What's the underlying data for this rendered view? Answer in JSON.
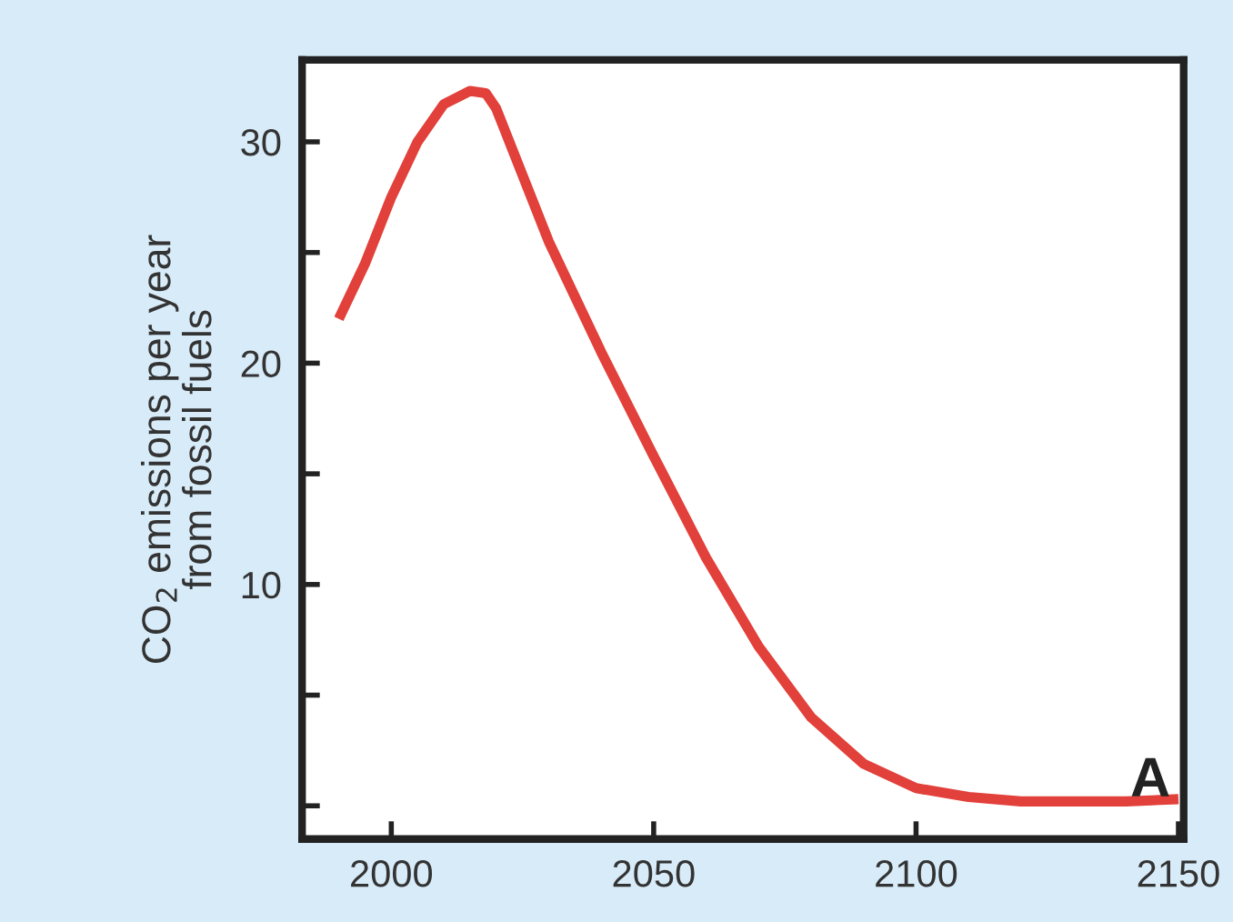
{
  "chart_data": {
    "type": "line",
    "ylabel": "CO$_{2}$ emissions per year\nfrom fossil fuels",
    "x": [
      1990,
      1995,
      2000,
      2005,
      2010,
      2015,
      2018,
      2020,
      2025,
      2030,
      2040,
      2050,
      2060,
      2070,
      2080,
      2090,
      2100,
      2110,
      2120,
      2130,
      2140,
      2150
    ],
    "series": [
      {
        "color": "#e2403a",
        "values": [
          22,
          24.5,
          27.5,
          30,
          31.7,
          32.3,
          32.2,
          31.5,
          28.5,
          25.5,
          20.5,
          15.8,
          11.2,
          7.2,
          4,
          1.9,
          0.8,
          0.4,
          0.2,
          0.2,
          0.2,
          0.3
        ]
      }
    ],
    "xlim": [
      1983,
      2151
    ],
    "ylim": [
      -1.5,
      33.7
    ],
    "xticks": [
      2000,
      2050,
      2100,
      2150
    ],
    "yticks": [
      {
        "value": 0,
        "label": null
      },
      {
        "value": 5,
        "label": null
      },
      10,
      {
        "value": 15,
        "label": null
      },
      20,
      {
        "value": 25,
        "label": null
      },
      30
    ],
    "annotations": [
      "A"
    ],
    "grid": false,
    "legend": false,
    "marker": "none",
    "line_style": "solid"
  }
}
